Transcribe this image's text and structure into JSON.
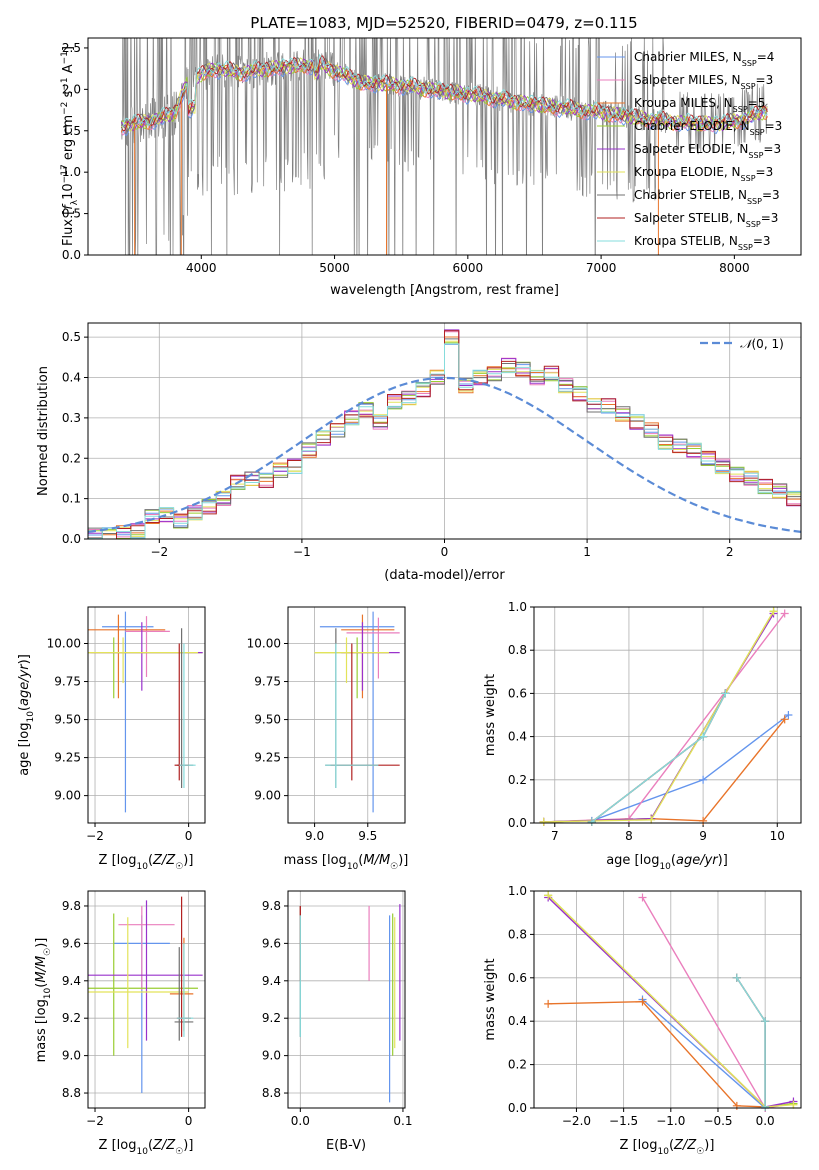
{
  "colors": {
    "Chabrier MILES": "#6495ed",
    "Salpeter MILES": "#ea7fbd",
    "Kroupa MILES": "#e8742a",
    "Chabrier ELODIE": "#9acd32",
    "Salpeter ELODIE": "#9932cc",
    "Kroupa ELODIE": "#e3e35a",
    "Chabrier STELIB": "#707070",
    "Salpeter STELIB": "#b22222",
    "Kroupa STELIB": "#86dcdc"
  },
  "series_order": [
    "Chabrier MILES",
    "Salpeter MILES",
    "Kroupa MILES",
    "Chabrier ELODIE",
    "Salpeter ELODIE",
    "Kroupa ELODIE",
    "Chabrier STELIB",
    "Salpeter STELIB",
    "Kroupa STELIB"
  ],
  "chart_data": [
    {
      "id": "spectrum",
      "type": "line",
      "title": "PLATE=1083, MJD=52520, FIBERID=0479, z=0.115",
      "xlabel": "wavelength [Angstrom, rest frame]",
      "ylabel": "Flux [f_λ 10^-17 erg cm^-2 s^-1 A^-1]",
      "xlim": [
        3150,
        8500
      ],
      "ylim": [
        0,
        2.62
      ],
      "xticks": [
        4000,
        5000,
        6000,
        7000,
        8000
      ],
      "yticks": [
        0.0,
        0.5,
        1.0,
        1.5,
        2.0,
        2.5
      ],
      "data_color": "#808080",
      "continuum": {
        "x": [
          3400,
          3550,
          3700,
          3800,
          3900,
          4000,
          4100,
          4300,
          4500,
          4700,
          4900,
          5200,
          5500,
          5800,
          6100,
          6400,
          6700,
          7000,
          7300,
          7600,
          7900,
          8100,
          8250
        ],
        "y": [
          1.55,
          1.6,
          1.65,
          1.72,
          2.1,
          2.18,
          2.25,
          2.2,
          2.25,
          2.28,
          2.3,
          2.08,
          2.05,
          1.98,
          1.92,
          1.84,
          1.78,
          1.72,
          1.65,
          1.6,
          1.58,
          1.65,
          1.75
        ]
      },
      "legend": [
        {
          "label": "Chabrier MILES, N",
          "sub": "SSP",
          "tail": "=4"
        },
        {
          "label": "Salpeter MILES, N",
          "sub": "SSP",
          "tail": "=3"
        },
        {
          "label": "Kroupa MILES, N",
          "sub": "SSP",
          "tail": "=5"
        },
        {
          "label": "Chabrier ELODIE, N",
          "sub": "SSP",
          "tail": "=3"
        },
        {
          "label": "Salpeter ELODIE, N",
          "sub": "SSP",
          "tail": "=3"
        },
        {
          "label": "Kroupa ELODIE, N",
          "sub": "SSP",
          "tail": "=3"
        },
        {
          "label": "Chabrier STELIB, N",
          "sub": "SSP",
          "tail": "=3"
        },
        {
          "label": "Salpeter STELIB, N",
          "sub": "SSP",
          "tail": "=3"
        },
        {
          "label": "Kroupa STELIB, N",
          "sub": "SSP",
          "tail": "=3"
        }
      ]
    },
    {
      "id": "residuals",
      "type": "line",
      "xlabel": "(data-model)/error",
      "ylabel": "Normed distribution",
      "xlim": [
        -2.5,
        2.5
      ],
      "ylim": [
        0,
        0.535
      ],
      "xticks": [
        -2,
        -1,
        0,
        1,
        2
      ],
      "yticks": [
        0.0,
        0.1,
        0.2,
        0.3,
        0.4,
        0.5
      ],
      "legend_label": "N(0,1)",
      "bin_edges_start": -2.5,
      "bin_width": 0.1,
      "base_hist": [
        0.01,
        0.01,
        0.015,
        0.02,
        0.055,
        0.06,
        0.045,
        0.065,
        0.08,
        0.1,
        0.14,
        0.15,
        0.145,
        0.17,
        0.18,
        0.22,
        0.25,
        0.27,
        0.3,
        0.32,
        0.29,
        0.34,
        0.35,
        0.37,
        0.4,
        0.5,
        0.38,
        0.4,
        0.41,
        0.43,
        0.42,
        0.4,
        0.41,
        0.38,
        0.36,
        0.33,
        0.33,
        0.31,
        0.29,
        0.27,
        0.24,
        0.23,
        0.22,
        0.2,
        0.18,
        0.16,
        0.15,
        0.13,
        0.12,
        0.1,
        0.09,
        0.07,
        0.06,
        0.05,
        0.04,
        0.03,
        0.02,
        0.015
      ]
    },
    {
      "id": "age_vs_Z",
      "type": "scatter",
      "xlabel": "Z [log10(Z/Z☉)]",
      "ylabel": "age  [log10(age/yr)]",
      "xlim": [
        -2.15,
        0.35
      ],
      "ylim": [
        8.82,
        10.24
      ],
      "xticks": [
        -2,
        0
      ],
      "yticks": [
        9.0,
        9.25,
        9.5,
        9.75,
        10.0
      ],
      "ytick_labels": [
        "9.00",
        "9.25",
        "9.50",
        "9.75",
        "10.00"
      ],
      "errorbars": [
        {
          "series": "Chabrier MILES",
          "x": -1.35,
          "xerr": [
            0.5,
            0.6
          ],
          "y": 10.11,
          "yerr": [
            1.22,
            0.1
          ]
        },
        {
          "series": "Salpeter MILES",
          "x": -0.9,
          "xerr": [
            0.45,
            0.5
          ],
          "y": 10.08,
          "yerr": [
            0.3,
            0.1
          ]
        },
        {
          "series": "Kroupa MILES",
          "x": -1.5,
          "xerr": [
            0.7,
            1.0
          ],
          "y": 10.09,
          "yerr": [
            0.45,
            0.1
          ]
        },
        {
          "series": "Chabrier ELODIE",
          "x": -1.6,
          "xerr": [
            0.6,
            1.9
          ],
          "y": 9.94,
          "yerr": [
            0.3,
            0.1
          ]
        },
        {
          "series": "Salpeter ELODIE",
          "x": -1.0,
          "xerr": [
            1.1,
            1.3
          ],
          "y": 9.94,
          "yerr": [
            0.25,
            0.2
          ]
        },
        {
          "series": "Kroupa ELODIE",
          "x": -1.4,
          "xerr": [
            0.8,
            1.6
          ],
          "y": 9.94,
          "yerr": [
            0.2,
            0.1
          ]
        },
        {
          "series": "Chabrier STELIB",
          "x": -0.15,
          "xerr": [
            0.1,
            0.25
          ],
          "y": 9.2,
          "yerr": [
            0.15,
            0.9
          ]
        },
        {
          "series": "Salpeter STELIB",
          "x": -0.2,
          "xerr": [
            0.1,
            0.2
          ],
          "y": 9.2,
          "yerr": [
            0.1,
            0.8
          ]
        },
        {
          "series": "Kroupa STELIB",
          "x": -0.1,
          "xerr": [
            0.1,
            0.25
          ],
          "y": 9.2,
          "yerr": [
            0.15,
            0.8
          ]
        }
      ]
    },
    {
      "id": "age_vs_mass",
      "type": "scatter",
      "xlabel": "mass [log10(M/M☉)]",
      "ylabel": "",
      "xlim": [
        8.75,
        9.85
      ],
      "ylim": [
        8.82,
        10.24
      ],
      "xticks": [
        9.0,
        9.5
      ],
      "xtick_labels": [
        "9.0",
        "9.5"
      ],
      "yticks": [
        9.0,
        9.25,
        9.5,
        9.75,
        10.0
      ],
      "ytick_labels": [
        "9.00",
        "9.25",
        "9.50",
        "9.75",
        "10.00"
      ],
      "errorbars": [
        {
          "series": "Chabrier MILES",
          "x": 9.55,
          "xerr": [
            0.5,
            0.2
          ],
          "y": 10.11,
          "yerr": [
            1.22,
            0.1
          ]
        },
        {
          "series": "Salpeter MILES",
          "x": 9.6,
          "xerr": [
            0.3,
            0.2
          ],
          "y": 10.07,
          "yerr": [
            0.3,
            0.1
          ]
        },
        {
          "series": "Kroupa MILES",
          "x": 9.45,
          "xerr": [
            0.2,
            0.3
          ],
          "y": 10.09,
          "yerr": [
            0.45,
            0.1
          ]
        },
        {
          "series": "Chabrier ELODIE",
          "x": 9.4,
          "xerr": [
            0.4,
            0.3
          ],
          "y": 9.94,
          "yerr": [
            0.3,
            0.1
          ]
        },
        {
          "series": "Salpeter ELODIE",
          "x": 9.45,
          "xerr": [
            0.2,
            0.35
          ],
          "y": 9.94,
          "yerr": [
            0.25,
            0.2
          ]
        },
        {
          "series": "Kroupa ELODIE",
          "x": 9.3,
          "xerr": [
            0.3,
            0.4
          ],
          "y": 9.94,
          "yerr": [
            0.2,
            0.1
          ]
        },
        {
          "series": "Chabrier STELIB",
          "x": 9.2,
          "xerr": [
            0.1,
            0.4
          ],
          "y": 9.2,
          "yerr": [
            0.15,
            0.9
          ]
        },
        {
          "series": "Salpeter STELIB",
          "x": 9.35,
          "xerr": [
            0.2,
            0.45
          ],
          "y": 9.2,
          "yerr": [
            0.1,
            0.8
          ]
        },
        {
          "series": "Kroupa STELIB",
          "x": 9.2,
          "xerr": [
            0.1,
            0.4
          ],
          "y": 9.2,
          "yerr": [
            0.15,
            0.8
          ]
        }
      ]
    },
    {
      "id": "weight_vs_age",
      "type": "line",
      "xlabel": "age  [log10(age/yr)]",
      "ylabel": "mass weight",
      "xlim": [
        6.72,
        10.32
      ],
      "ylim": [
        0,
        1.0
      ],
      "xticks": [
        7,
        8,
        9,
        10
      ],
      "yticks": [
        0.0,
        0.2,
        0.4,
        0.6,
        0.8,
        1.0
      ],
      "series": [
        {
          "name": "Chabrier MILES",
          "x": [
            7.5,
            9.0,
            10.15
          ],
          "y": [
            0.01,
            0.2,
            0.5
          ]
        },
        {
          "name": "Salpeter MILES",
          "x": [
            6.85,
            8.0,
            10.1
          ],
          "y": [
            0.005,
            0.02,
            0.97
          ]
        },
        {
          "name": "Kroupa MILES",
          "x": [
            6.85,
            8.3,
            9.0,
            10.1
          ],
          "y": [
            0.005,
            0.02,
            0.01,
            0.48
          ]
        },
        {
          "name": "Chabrier ELODIE",
          "x": [
            6.85,
            8.3,
            9.3,
            9.95
          ],
          "y": [
            0.005,
            0.02,
            0.6,
            0.98
          ]
        },
        {
          "name": "Salpeter ELODIE",
          "x": [
            6.85,
            8.3,
            9.3,
            9.95
          ],
          "y": [
            0.005,
            0.02,
            0.6,
            0.97
          ]
        },
        {
          "name": "Kroupa ELODIE",
          "x": [
            6.85,
            8.3,
            9.3,
            9.95
          ],
          "y": [
            0.005,
            0.015,
            0.6,
            0.98
          ]
        },
        {
          "name": "Chabrier STELIB",
          "x": [
            7.5,
            9.0,
            9.3
          ],
          "y": [
            0.005,
            0.4,
            0.6
          ]
        },
        {
          "name": "Salpeter STELIB",
          "x": [
            7.5,
            9.0,
            9.3
          ],
          "y": [
            0.005,
            0.4,
            0.6
          ]
        },
        {
          "name": "Kroupa STELIB",
          "x": [
            7.5,
            9.0,
            9.3
          ],
          "y": [
            0.005,
            0.4,
            0.6
          ]
        }
      ]
    },
    {
      "id": "mass_vs_Z",
      "type": "scatter",
      "xlabel": "Z [log10(Z/Z☉)]",
      "ylabel": "mass [log10(M/M☉)]",
      "xlim": [
        -2.15,
        0.35
      ],
      "ylim": [
        8.72,
        9.88
      ],
      "xticks": [
        -2,
        0
      ],
      "yticks": [
        8.8,
        9.0,
        9.2,
        9.4,
        9.6,
        9.8
      ],
      "ytick_labels": [
        "8.8",
        "9.0",
        "9.2",
        "9.4",
        "9.6",
        "9.8"
      ],
      "errorbars": [
        {
          "series": "Chabrier MILES",
          "x": -1.0,
          "xerr": [
            0.6,
            0.6
          ],
          "y": 9.6,
          "yerr": [
            0.8,
            0.15
          ]
        },
        {
          "series": "Salpeter MILES",
          "x": -1.0,
          "xerr": [
            0.5,
            0.7
          ],
          "y": 9.7,
          "yerr": [
            0.35,
            0.1
          ]
        },
        {
          "series": "Kroupa MILES",
          "x": -0.1,
          "xerr": [
            0.3,
            0.2
          ],
          "y": 9.33,
          "yerr": [
            0.2,
            0.3
          ]
        },
        {
          "series": "Chabrier ELODIE",
          "x": -1.6,
          "xerr": [
            0.6,
            1.8
          ],
          "y": 9.36,
          "yerr": [
            0.36,
            0.4
          ]
        },
        {
          "series": "Salpeter ELODIE",
          "x": -0.9,
          "xerr": [
            1.3,
            1.2
          ],
          "y": 9.43,
          "yerr": [
            0.35,
            0.4
          ]
        },
        {
          "series": "Kroupa ELODIE",
          "x": -1.3,
          "xerr": [
            0.9,
            1.3
          ],
          "y": 9.34,
          "yerr": [
            0.3,
            0.4
          ]
        },
        {
          "series": "Chabrier STELIB",
          "x": -0.2,
          "xerr": [
            0.1,
            0.3
          ],
          "y": 9.18,
          "yerr": [
            0.1,
            0.4
          ]
        },
        {
          "series": "Salpeter STELIB",
          "x": -0.15,
          "xerr": [
            0.1,
            0.2
          ],
          "y": 9.2,
          "yerr": [
            0.1,
            0.65
          ]
        },
        {
          "series": "Kroupa STELIB",
          "x": -0.1,
          "xerr": [
            0.15,
            0.2
          ],
          "y": 9.2,
          "yerr": [
            0.1,
            0.4
          ]
        }
      ]
    },
    {
      "id": "mass_vs_ebv",
      "type": "scatter",
      "xlabel": "E(B-V)",
      "ylabel": "",
      "xlim": [
        -0.012,
        0.102
      ],
      "ylim": [
        8.72,
        9.88
      ],
      "xticks": [
        0.0,
        0.1
      ],
      "xtick_labels": [
        "0.0",
        "0.1"
      ],
      "yticks": [
        8.8,
        9.0,
        9.2,
        9.4,
        9.6,
        9.8
      ],
      "ytick_labels": [
        "8.8",
        "9.0",
        "9.2",
        "9.4",
        "9.6",
        "9.8"
      ],
      "errorbars": [
        {
          "series": "Chabrier MILES",
          "x": 0.087,
          "y": 9.3,
          "yerr": [
            0.55,
            0.45
          ]
        },
        {
          "series": "Salpeter MILES",
          "x": 0.067,
          "y": 9.6,
          "yerr": [
            0.2,
            0.2
          ]
        },
        {
          "series": "Kroupa MILES",
          "x": 0.0,
          "y": 9.6,
          "yerr": [
            0.2,
            0.2
          ]
        },
        {
          "series": "Chabrier ELODIE",
          "x": 0.09,
          "y": 9.36,
          "yerr": [
            0.36,
            0.4
          ]
        },
        {
          "series": "Salpeter ELODIE",
          "x": 0.097,
          "y": 9.43,
          "yerr": [
            0.35,
            0.38
          ]
        },
        {
          "series": "Kroupa ELODIE",
          "x": 0.092,
          "y": 9.34,
          "yerr": [
            0.3,
            0.4
          ]
        },
        {
          "series": "Chabrier STELIB",
          "x": 0.0,
          "y": 9.6,
          "yerr": [
            0.5,
            0.2
          ]
        },
        {
          "series": "Salpeter STELIB",
          "x": 0.0,
          "y": 9.6,
          "yerr": [
            0.2,
            0.2
          ]
        },
        {
          "series": "Kroupa STELIB",
          "x": 0.0,
          "y": 9.45,
          "yerr": [
            0.35,
            0.3
          ]
        }
      ]
    },
    {
      "id": "weight_vs_Z",
      "type": "line",
      "xlabel": "Z [log10(Z/Z☉)]",
      "ylabel": "mass weight",
      "xlim": [
        -2.45,
        0.38
      ],
      "ylim": [
        0,
        1.0
      ],
      "xticks": [
        -2.0,
        -1.5,
        -1.0,
        -0.5,
        0.0
      ],
      "xtick_labels": [
        "−2.0",
        "−1.5",
        "−1.0",
        "−0.5",
        "0.0"
      ],
      "yticks": [
        0.0,
        0.2,
        0.4,
        0.6,
        0.8,
        1.0
      ],
      "series": [
        {
          "name": "Chabrier MILES",
          "x": [
            -1.3,
            0.0
          ],
          "y": [
            0.5,
            0.0
          ]
        },
        {
          "name": "Salpeter MILES",
          "x": [
            -1.3,
            0.0,
            0.3
          ],
          "y": [
            0.97,
            0.0,
            0.02
          ]
        },
        {
          "name": "Kroupa MILES",
          "x": [
            -2.3,
            -1.3,
            -0.3,
            0.0
          ],
          "y": [
            0.48,
            0.49,
            0.01,
            0.005
          ]
        },
        {
          "name": "Chabrier ELODIE",
          "x": [
            -2.3,
            0.0,
            0.3
          ],
          "y": [
            0.98,
            0.005,
            0.02
          ]
        },
        {
          "name": "Salpeter ELODIE",
          "x": [
            -2.3,
            0.0,
            0.3
          ],
          "y": [
            0.97,
            0.005,
            0.03
          ]
        },
        {
          "name": "Kroupa ELODIE",
          "x": [
            -2.3,
            0.0,
            0.3
          ],
          "y": [
            0.98,
            0.005,
            0.015
          ]
        },
        {
          "name": "Chabrier STELIB",
          "x": [
            -0.3,
            0.0,
            0.0
          ],
          "y": [
            0.6,
            0.4,
            0.005
          ]
        },
        {
          "name": "Salpeter STELIB",
          "x": [
            -0.3,
            0.0,
            0.0
          ],
          "y": [
            0.6,
            0.4,
            0.005
          ]
        },
        {
          "name": "Kroupa STELIB",
          "x": [
            -0.3,
            0.0,
            0.0
          ],
          "y": [
            0.6,
            0.4,
            0.005
          ]
        }
      ]
    }
  ]
}
